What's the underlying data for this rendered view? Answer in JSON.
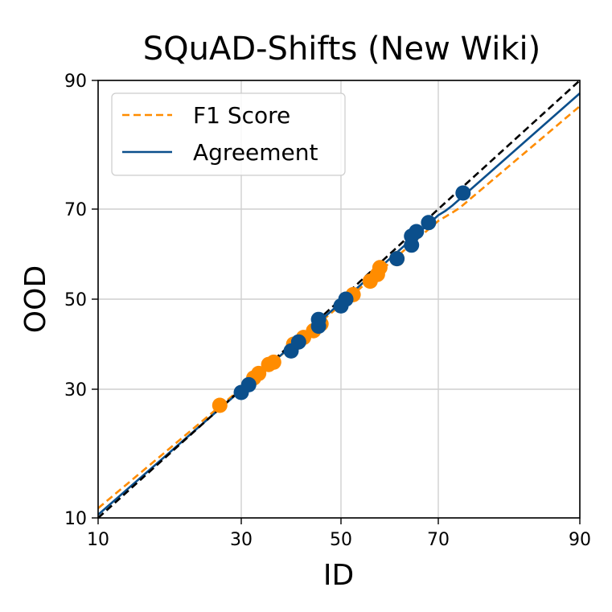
{
  "chart_data": {
    "type": "scatter",
    "title": "SQuAD-Shifts (New Wiki)",
    "xlabel": "ID",
    "ylabel": "OOD",
    "xlim": [
      10,
      90
    ],
    "ylim": [
      10,
      90
    ],
    "x_ticks": [
      10,
      30,
      50,
      70,
      90
    ],
    "y_ticks": [
      10,
      30,
      50,
      70,
      90
    ],
    "axis_scale": "probit-like (nonlinear, expanded near center)",
    "grid": true,
    "legend_position": "top-left",
    "series": [
      {
        "name": "F1 Score",
        "color": "#ff8c00",
        "line_style": "dashed",
        "fit_line": [
          [
            10,
            11.5
          ],
          [
            90,
            86
          ]
        ],
        "points": [
          [
            27,
            27.5
          ],
          [
            32.5,
            32.5
          ],
          [
            33.5,
            33.5
          ],
          [
            35.5,
            35.5
          ],
          [
            36.5,
            36
          ],
          [
            40.5,
            40
          ],
          [
            42.5,
            41.5
          ],
          [
            44.5,
            43
          ],
          [
            46,
            44.5
          ],
          [
            52.5,
            51
          ],
          [
            56,
            54
          ],
          [
            57.5,
            55.5
          ],
          [
            61.5,
            59
          ],
          [
            58,
            57
          ]
        ]
      },
      {
        "name": "Agreement",
        "color": "#0b4f8c",
        "line_style": "solid",
        "fit_line": [
          [
            10,
            10.5
          ],
          [
            90,
            88
          ]
        ],
        "points": [
          [
            30,
            29.5
          ],
          [
            31.5,
            31
          ],
          [
            40,
            38.5
          ],
          [
            41.5,
            40.5
          ],
          [
            45.5,
            44
          ],
          [
            45.5,
            45.5
          ],
          [
            50,
            48.5
          ],
          [
            51,
            50
          ],
          [
            61.5,
            59
          ],
          [
            64.5,
            62
          ],
          [
            64.5,
            64
          ],
          [
            65.5,
            65
          ],
          [
            68,
            67
          ],
          [
            73.5,
            72.5
          ]
        ]
      },
      {
        "name": "",
        "color": "#000000",
        "line_style": "dashed",
        "fit_line": [
          [
            10,
            10
          ],
          [
            90,
            90
          ]
        ],
        "points": []
      }
    ]
  }
}
